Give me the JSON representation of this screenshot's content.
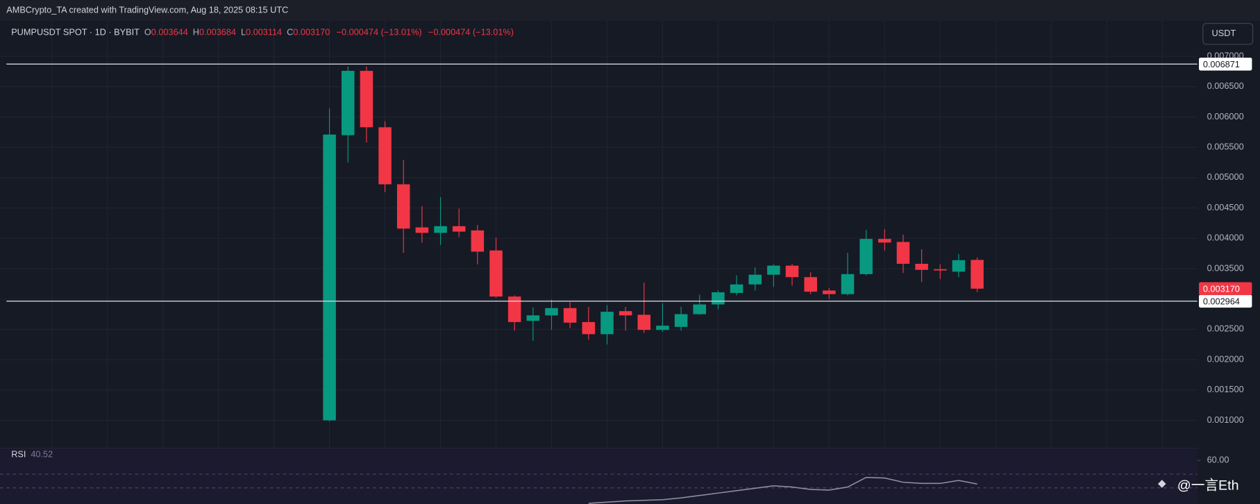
{
  "chart_data": {
    "type": "candlestick",
    "header": "AMBCrypto_TA created with TradingView.com, Aug 18, 2025 08:15 UTC",
    "symbol": "PUMPUSDT SPOT · 1D · BYBIT",
    "legend": [
      {
        "key": "O",
        "value": "0.003644"
      },
      {
        "key": "H",
        "value": "0.003684"
      },
      {
        "key": "L",
        "value": "0.003114"
      },
      {
        "key": "C",
        "value": "0.003170"
      }
    ],
    "changes": [
      "−0.000474 (−13.01%)",
      "−0.000474 (−13.01%)"
    ],
    "currency": "USDT",
    "up_color": "#089981",
    "down_color": "#f23645",
    "ylim": [
      0.000682,
      0.007264
    ],
    "yticks": [
      {
        "value": 0.001,
        "label": "0.001000"
      },
      {
        "value": 0.0015,
        "label": "0.001500"
      },
      {
        "value": 0.002,
        "label": "0.002000"
      },
      {
        "value": 0.0025,
        "label": "0.002500"
      },
      {
        "value": 0.003,
        "label": "0.003000"
      },
      {
        "value": 0.0035,
        "label": "0.003500"
      },
      {
        "value": 0.004,
        "label": "0.004000"
      },
      {
        "value": 0.0045,
        "label": "0.004500"
      },
      {
        "value": 0.005,
        "label": "0.005000"
      },
      {
        "value": 0.0055,
        "label": "0.005500"
      },
      {
        "value": 0.006,
        "label": "0.006000"
      },
      {
        "value": 0.0065,
        "label": "0.006500"
      },
      {
        "value": 0.007,
        "label": "0.007000"
      }
    ],
    "hlines": [
      0.006871,
      0.002964
    ],
    "last_price": {
      "value": 0.00317,
      "label": "0.003170"
    },
    "open": [
      0.001,
      0.0057,
      0.00676,
      0.00583,
      0.00489,
      0.00418,
      0.00409,
      0.0042,
      0.00413,
      0.0038,
      0.00304,
      0.00264,
      0.00273,
      0.00285,
      0.00262,
      0.00242,
      0.0028,
      0.00274,
      0.00249,
      0.00254,
      0.00275,
      0.00291,
      0.0031,
      0.00324,
      0.0034,
      0.00355,
      0.00336,
      0.00314,
      0.00308,
      0.00341,
      0.00399,
      0.00394,
      0.00358,
      0.00349,
      0.00345,
      0.003644
    ],
    "high": [
      0.00614,
      0.00683,
      0.00683,
      0.00593,
      0.00529,
      0.00453,
      0.00468,
      0.00449,
      0.00422,
      0.00401,
      0.00306,
      0.00286,
      0.00299,
      0.00295,
      0.00287,
      0.0029,
      0.00287,
      0.00327,
      0.00293,
      0.00287,
      0.00307,
      0.00314,
      0.00339,
      0.00352,
      0.00357,
      0.00358,
      0.00344,
      0.00318,
      0.00376,
      0.00414,
      0.00415,
      0.00406,
      0.00382,
      0.00357,
      0.00374,
      0.003684
    ],
    "low": [
      0.00098,
      0.00525,
      0.00558,
      0.00476,
      0.00376,
      0.00393,
      0.00389,
      0.00402,
      0.00357,
      0.00302,
      0.00248,
      0.00231,
      0.00249,
      0.00252,
      0.00233,
      0.00225,
      0.00248,
      0.00244,
      0.00246,
      0.00248,
      0.00274,
      0.00283,
      0.00306,
      0.00314,
      0.0032,
      0.00322,
      0.00308,
      0.003,
      0.00306,
      0.00339,
      0.0038,
      0.00343,
      0.00328,
      0.00333,
      0.00336,
      0.003114
    ],
    "close": [
      0.00571,
      0.00676,
      0.00583,
      0.00489,
      0.00416,
      0.00409,
      0.0042,
      0.00411,
      0.00378,
      0.00304,
      0.00262,
      0.00273,
      0.00285,
      0.00261,
      0.00242,
      0.00279,
      0.00273,
      0.00249,
      0.00256,
      0.00275,
      0.00291,
      0.00311,
      0.00324,
      0.0034,
      0.00355,
      0.00336,
      0.00312,
      0.00308,
      0.00341,
      0.00399,
      0.00393,
      0.00358,
      0.00348,
      0.00347,
      0.00364,
      0.00317
    ],
    "rsi": {
      "name": "RSI",
      "color": "#8e8e9a",
      "ylim": [
        24,
        70
      ],
      "yticks": [
        {
          "value": 60,
          "label": "60.00"
        }
      ],
      "values": [
        null,
        null,
        null,
        null,
        null,
        null,
        null,
        null,
        null,
        null,
        null,
        null,
        null,
        null,
        24.5,
        25.5,
        26.5,
        27,
        27.5,
        29,
        31,
        33,
        35,
        37,
        39,
        38,
        36,
        35.5,
        38,
        46,
        45.5,
        42,
        41,
        41,
        43.5,
        40.52
      ]
    },
    "watermark": "@一言Eth"
  }
}
